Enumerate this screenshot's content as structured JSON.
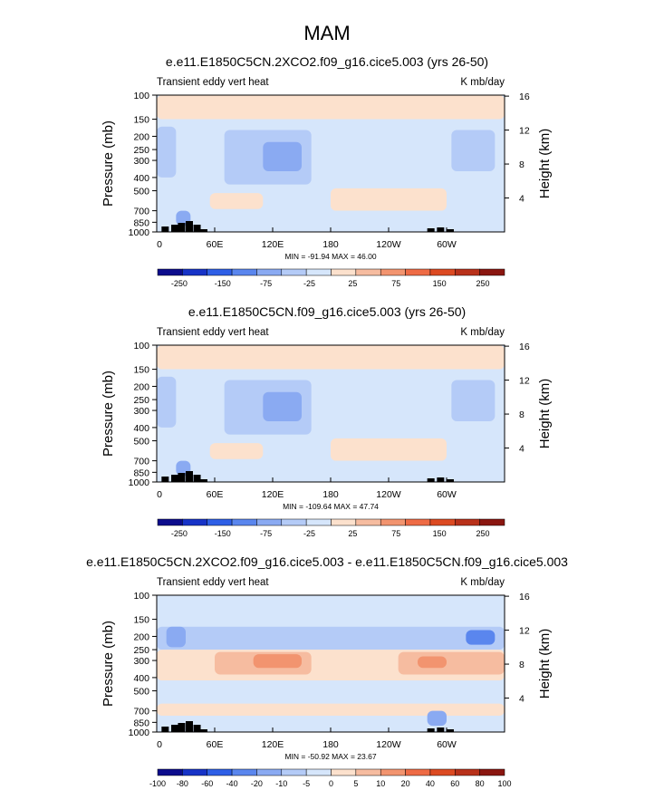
{
  "figure": {
    "title": "MAM"
  },
  "colors": {
    "ramp_bins": [
      "#0c0c8c",
      "#1733c7",
      "#2e5fe6",
      "#5a86ee",
      "#8aaaf2",
      "#b4cbf7",
      "#d6e6fb",
      "#fce1cd",
      "#f6bca0",
      "#f2946f",
      "#ee6b45",
      "#dc4a22",
      "#b8311a",
      "#8a1610"
    ],
    "background_field": "#d6e6fb"
  },
  "axes_common": {
    "left_axis_label": "Pressure (mb)",
    "right_axis_label": "Height (km)",
    "pressure_ticks": [
      "100",
      "150",
      "200",
      "250",
      "300",
      "400",
      "500",
      "700",
      "850",
      "1000"
    ],
    "height_ticks": [
      "16",
      "12",
      "8",
      "4"
    ],
    "lon_ticks": [
      "0",
      "60E",
      "120E",
      "180",
      "120W",
      "60W"
    ]
  },
  "chart_data": [
    {
      "type": "heatmap",
      "title": "e.e11.E1850C5CN.2XCO2.f09_g16.cice5.003 (yrs 26-50)",
      "left_label": "Transient eddy vert heat",
      "right_label": "K mb/day",
      "stats": "MIN = -91.94  MAX =  46.00",
      "colorbar_labels": [
        "-250",
        "-150",
        "-75",
        "-25",
        "25",
        "75",
        "150",
        "250"
      ],
      "colorbar_levels": [
        -250,
        -200,
        -150,
        -100,
        -75,
        -50,
        -25,
        0,
        25,
        50,
        75,
        100,
        150,
        200,
        250
      ],
      "min": -91.94,
      "max": 46.0,
      "xlim": [
        0,
        360
      ],
      "ylim_mb": [
        1000,
        100
      ]
    },
    {
      "type": "heatmap",
      "title": "e.e11.E1850C5CN.f09_g16.cice5.003 (yrs 26-50)",
      "left_label": "Transient eddy vert heat",
      "right_label": "K mb/day",
      "stats": "MIN = -109.64  MAX =  47.74",
      "colorbar_labels": [
        "-250",
        "-150",
        "-75",
        "-25",
        "25",
        "75",
        "150",
        "250"
      ],
      "colorbar_levels": [
        -250,
        -200,
        -150,
        -100,
        -75,
        -50,
        -25,
        0,
        25,
        50,
        75,
        100,
        150,
        200,
        250
      ],
      "min": -109.64,
      "max": 47.74,
      "xlim": [
        0,
        360
      ],
      "ylim_mb": [
        1000,
        100
      ]
    },
    {
      "type": "heatmap",
      "title": "e.e11.E1850C5CN.2XCO2.f09_g16.cice5.003 - e.e11.E1850C5CN.f09_g16.cice5.003",
      "left_label": "Transient eddy vert heat",
      "right_label": "K mb/day",
      "stats": "MIN = -50.92  MAX =  23.67",
      "colorbar_labels": [
        "-100",
        "-80",
        "-60",
        "-40",
        "-20",
        "-10",
        "-5",
        "0",
        "5",
        "10",
        "20",
        "40",
        "60",
        "80",
        "100"
      ],
      "colorbar_levels": [
        -100,
        -80,
        -60,
        -40,
        -20,
        -10,
        -5,
        0,
        5,
        10,
        20,
        40,
        60,
        80,
        100
      ],
      "min": -50.92,
      "max": 23.67,
      "xlim": [
        0,
        360
      ],
      "ylim_mb": [
        1000,
        100
      ]
    }
  ]
}
